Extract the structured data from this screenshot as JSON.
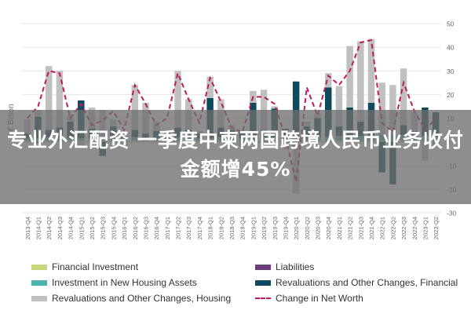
{
  "overlay_title": "专业外汇配资 一季度中柬两国跨境人民币业务收付金额增45%",
  "chart_data": {
    "type": "bar",
    "ylabel": "€ Billion",
    "ylim": [
      -30,
      50
    ],
    "yticks": [
      50,
      40,
      30,
      20,
      10,
      0,
      -10,
      -20,
      -30
    ],
    "categories": [
      "2013-Q4",
      "2014-Q1",
      "2014-Q2",
      "2014-Q3",
      "2014-Q4",
      "2015-Q1",
      "2015-Q2",
      "2015-Q3",
      "2015-Q4",
      "2016-Q1",
      "2016-Q2",
      "2016-Q3",
      "2016-Q4",
      "2017-Q1",
      "2017-Q2",
      "2017-Q3",
      "2017-Q4",
      "2018-Q1",
      "2018-Q2",
      "2018-Q3",
      "2018-Q4",
      "2019-Q1",
      "2019-Q2",
      "2019-Q3",
      "2019-Q4",
      "2020-Q1",
      "2020-Q2",
      "2020-Q3",
      "2020-Q4",
      "2021-Q1",
      "2021-Q2",
      "2021-Q3",
      "2021-Q4",
      "2022-Q1",
      "2022-Q2",
      "2022-Q3",
      "2022-Q4",
      "2023-Q1",
      "2023-Q2"
    ],
    "series": [
      {
        "name": "Financial Investment",
        "color": "#c5d97a",
        "values": [
          0.5,
          0.5,
          0.5,
          0.5,
          0.5,
          0.5,
          0.5,
          0.5,
          0.5,
          0.5,
          0.5,
          0.5,
          0.5,
          0.5,
          0.5,
          0.5,
          0.5,
          0.5,
          0.5,
          0.5,
          0.5,
          0.5,
          0.5,
          0.5,
          0.5,
          0.5,
          0.5,
          0.5,
          0.5,
          0.5,
          0.5,
          0.5,
          0.5,
          0.5,
          0.5,
          0.5,
          0.5,
          0.5,
          0.5
        ]
      },
      {
        "name": "Liabilities",
        "color": "#6b3f7a",
        "values": [
          0,
          -0.5,
          0,
          0,
          0,
          0,
          0,
          0,
          0,
          0,
          0,
          0,
          0,
          0,
          0,
          0,
          0,
          0,
          0,
          0,
          0,
          0,
          0,
          0,
          0,
          0,
          0,
          0,
          0,
          0,
          0,
          0,
          0,
          0,
          0,
          0,
          0,
          0,
          0
        ]
      },
      {
        "name": "Investment in New Housing Assets",
        "color": "#4bb5b0",
        "values": [
          1,
          1,
          1.5,
          1.5,
          1,
          1,
          1,
          1,
          1,
          1,
          1.5,
          1,
          1,
          1,
          1.5,
          1.5,
          1,
          1,
          1.5,
          1.5,
          1,
          1,
          1.5,
          1.5,
          1,
          1,
          1,
          1.5,
          1.5,
          2,
          2,
          2,
          2,
          2.5,
          2.5,
          2.5,
          2,
          2,
          2
        ]
      },
      {
        "name": "Revaluations and Other Changes, Financial",
        "color": "#0d4a5e",
        "values": [
          2,
          9,
          3,
          4,
          7,
          16,
          4,
          -6,
          5,
          1,
          3,
          2,
          3,
          3,
          4,
          3,
          2,
          17,
          4,
          3,
          3,
          15,
          3,
          12,
          4,
          24,
          5,
          8,
          21,
          4,
          12,
          6,
          14,
          -13,
          -18,
          4,
          2,
          12,
          10
        ]
      },
      {
        "name": "Revaluations and Other Changes, Housing",
        "color": "#c0c0c0",
        "values": [
          6,
          3,
          27,
          24,
          3,
          -2,
          9,
          12,
          3,
          -2,
          19,
          13,
          4,
          -1,
          24,
          13,
          1,
          9,
          12,
          2,
          -2,
          5,
          17,
          1,
          -3,
          -22,
          2,
          2,
          6,
          17,
          26,
          34,
          27,
          22,
          21,
          24,
          8,
          -8,
          -2
        ]
      },
      {
        "name": "Change in Net Worth",
        "color": "#c2185b",
        "style": "dashed-line",
        "values": [
          10,
          15,
          30,
          29,
          10,
          16,
          7,
          9,
          13,
          5,
          24,
          16,
          7,
          10,
          29,
          18,
          8,
          27,
          17,
          6,
          4,
          19,
          19,
          16,
          2,
          -17,
          23,
          11,
          28,
          24,
          30,
          42,
          43,
          8,
          4,
          25,
          13,
          5,
          10
        ]
      }
    ]
  }
}
